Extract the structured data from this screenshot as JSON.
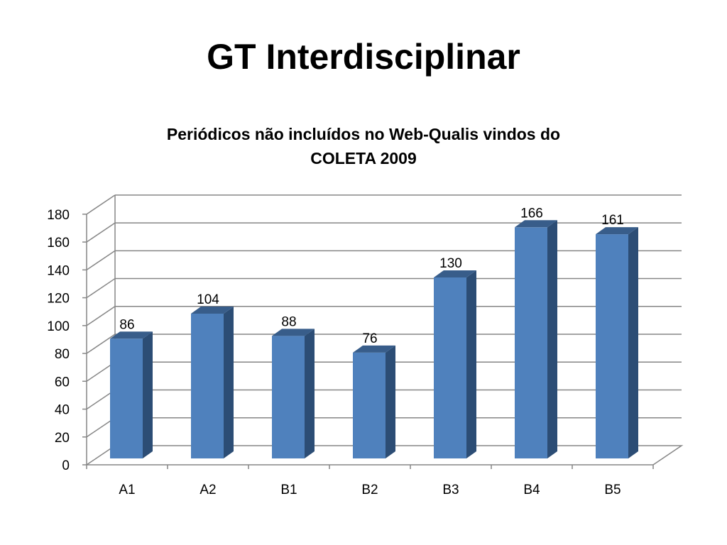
{
  "slide": {
    "title": "GT Interdisciplinar"
  },
  "chart_data": {
    "type": "bar",
    "title_lines": [
      "Periódicos não incluídos no Web-Qualis vindos do",
      "COLETA 2009"
    ],
    "categories": [
      "A1",
      "A2",
      "B1",
      "B2",
      "B3",
      "B4",
      "B5"
    ],
    "values": [
      86,
      104,
      88,
      76,
      130,
      166,
      161
    ],
    "data_labels": [
      "86",
      "104",
      "88",
      "76",
      "130",
      "166",
      "161"
    ],
    "ylim": [
      0,
      180
    ],
    "yticks": [
      0,
      20,
      40,
      60,
      80,
      100,
      120,
      140,
      160,
      180
    ],
    "ytick_labels": [
      "0",
      "20",
      "40",
      "60",
      "80",
      "100",
      "120",
      "140",
      "160",
      "180"
    ],
    "grid": true,
    "style": "3d-column",
    "colors": {
      "bar_front": "#4f81bd",
      "bar_side": "#2c4d75",
      "bar_top": "#385d8a",
      "grid": "#868686",
      "axis": "#868686"
    }
  }
}
